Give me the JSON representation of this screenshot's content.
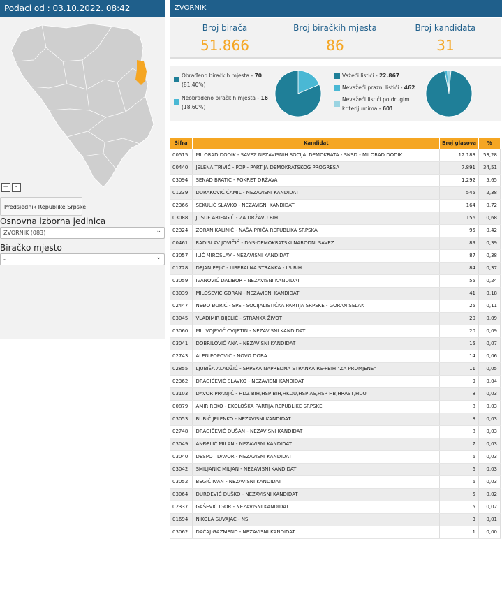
{
  "header": {
    "updated": "Podaci od : 03.10.2022. 08:42",
    "municipality": "ZVORNIK"
  },
  "map": {
    "zoom_in": "+",
    "zoom_out": "-",
    "highlight_color": "#f5a623"
  },
  "left": {
    "election_button": "Predsjednik Republike Srpske",
    "unit_label": "Osnovna izborna jedinica",
    "unit_value": "ZVORNIK (083)",
    "station_label": "Biračko mjesto",
    "station_value": "-"
  },
  "stats": [
    {
      "title": "Broj birača",
      "value": "51.866"
    },
    {
      "title": "Broj biračkih mjesta",
      "value": "86"
    },
    {
      "title": "Broj kandidata",
      "value": "31"
    }
  ],
  "pie1": {
    "legend": [
      {
        "label": "Obrađeno biračkih mjesta - ",
        "value": "70",
        "pct": "(81,40%)",
        "color": "#1f7f98"
      },
      {
        "label": "Neobrađeno biračkih mjesta - ",
        "value": "16",
        "pct": "(18,60%)",
        "color": "#4ab8d4"
      }
    ],
    "fractions": [
      0.814,
      0.186
    ]
  },
  "pie2": {
    "legend": [
      {
        "label": "Važeći listići - ",
        "value": "22.867",
        "color": "#1f7f98"
      },
      {
        "label": "Nevažeći prazni listići - ",
        "value": "462",
        "color": "#4ab8d4"
      },
      {
        "label": "Nevažeći listići po drugim kriterijumima - ",
        "value": "601",
        "color": "#9ad4e2"
      }
    ],
    "values": [
      22867,
      462,
      601
    ]
  },
  "table": {
    "headers": [
      "Šifra",
      "Kandidat",
      "Broj glasova",
      "%"
    ],
    "rows": [
      [
        "00515",
        "MILORAD DODIK - SAVEZ NEZAVISNIH SOCIJALDEMOKRATA - SNSD - MILORAD DODIK",
        "12.183",
        "53,28"
      ],
      [
        "00440",
        "JELENA TRIVIĆ - PDP - PARTIJA DEMOKRATSKOG PROGRESA",
        "7.891",
        "34,51"
      ],
      [
        "03094",
        "SENAD BRATIĆ - POKRET DRŽAVA",
        "1.292",
        "5,65"
      ],
      [
        "01239",
        "DURAKOVIĆ ĆAMIL - NEZAVISNI KANDIDAT",
        "545",
        "2,38"
      ],
      [
        "02366",
        "SEKULIĆ SLAVKO - NEZAVISNI KANDIDAT",
        "164",
        "0,72"
      ],
      [
        "03088",
        "JUSUF ARIFAGIĆ - ZA DRŽAVU BIH",
        "156",
        "0,68"
      ],
      [
        "02324",
        "ZORAN KALINIĆ - NAŠA PRIČA REPUBLIKA SRPSKA",
        "95",
        "0,42"
      ],
      [
        "00461",
        "RADISLAV JOVIČIĆ - DNS-DEMOKRATSKI NARODNI SAVEZ",
        "89",
        "0,39"
      ],
      [
        "03057",
        "ILIĆ MIROSLAV - NEZAVISNI KANDIDAT",
        "87",
        "0,38"
      ],
      [
        "01728",
        "DEJAN PEJIĆ - LIBERALNA STRANKA - LS BIH",
        "84",
        "0,37"
      ],
      [
        "03059",
        "IVANOVIĆ DALIBOR - NEZAVISNI KANDIDAT",
        "55",
        "0,24"
      ],
      [
        "03039",
        "MILOŠEVIĆ GORAN - NEZAVISNI KANDIDAT",
        "41",
        "0,18"
      ],
      [
        "02447",
        "NEĐO ĐURIĆ - SPS - SOCIJALISTIČKA PARTIJA SRPSKE - GORAN SELAK",
        "25",
        "0,11"
      ],
      [
        "03045",
        "VLADIMIR BIJELIĆ - STRANKA ŽIVOT",
        "20",
        "0,09"
      ],
      [
        "03060",
        "MILIVOJEVIĆ CVIJETIN - NEZAVISNI KANDIDAT",
        "20",
        "0,09"
      ],
      [
        "03041",
        "DOBRILOVIĆ ANA - NEZAVISNI KANDIDAT",
        "15",
        "0,07"
      ],
      [
        "02743",
        "ALEN POPOVIĆ - NOVO DOBA",
        "14",
        "0,06"
      ],
      [
        "02855",
        "LJUBIŠA ALADŽIĆ - SRPSKA NAPREDNA STRANKA RS-FBIH \"ZA PROMJENE\"",
        "11",
        "0,05"
      ],
      [
        "02362",
        "DRAGIČEVIĆ SLAVKO - NEZAVISNI KANDIDAT",
        "9",
        "0,04"
      ],
      [
        "03103",
        "DAVOR PRANJIĆ - HDZ BIH,HSP BIH,HKDU,HSP AS,HSP HB,HRAST,HDU",
        "8",
        "0,03"
      ],
      [
        "00879",
        "AMIR REKO - EKOLOŠKA PARTIJA REPUBLIKE SRPSKE",
        "8",
        "0,03"
      ],
      [
        "03053",
        "BUBIĆ JELENKO - NEZAVISNI KANDIDAT",
        "8",
        "0,03"
      ],
      [
        "02748",
        "DRAGIČEVIĆ DUŠAN - NEZAVISNI KANDIDAT",
        "8",
        "0,03"
      ],
      [
        "03049",
        "ANĐELIĆ MILAN - NEZAVISNI KANDIDAT",
        "7",
        "0,03"
      ],
      [
        "03040",
        "DESPOT DAVOR - NEZAVISNI KANDIDAT",
        "6",
        "0,03"
      ],
      [
        "03042",
        "SMILJANIĆ MILJAN - NEZAVISNI KANDIDAT",
        "6",
        "0,03"
      ],
      [
        "03052",
        "BEGIĆ IVAN - NEZAVISNI KANDIDAT",
        "6",
        "0,03"
      ],
      [
        "03064",
        "ĐURĐEVIĆ DUŠKO - NEZAVISNI KANDIDAT",
        "5",
        "0,02"
      ],
      [
        "02337",
        "GAŠEVIĆ IGOR - NEZAVISNI KANDIDAT",
        "5",
        "0,02"
      ],
      [
        "01694",
        "NIKOLA SUVAJAC - NS",
        "3",
        "0,01"
      ],
      [
        "03062",
        "DAČAJ GAZMEND - NEZAVISNI KANDIDAT",
        "1",
        "0,00"
      ]
    ]
  }
}
